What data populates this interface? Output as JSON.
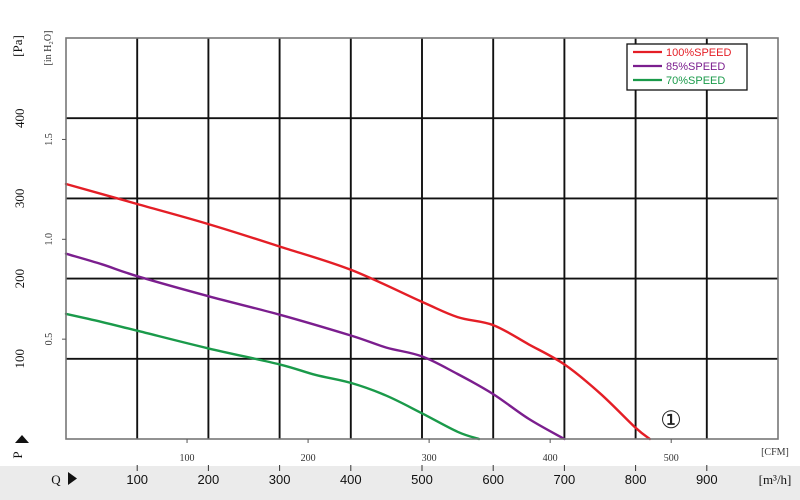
{
  "chart_data": {
    "type": "line",
    "x_unit_primary": "[m³/h]",
    "x_unit_secondary": "[CFM]",
    "y_unit_primary": "[Pa]",
    "y_unit_secondary": "[in H₂O]",
    "x_axis_letter": "Q",
    "y_axis_letter": "P",
    "curve_marker": "①",
    "xlim": [
      0,
      1000
    ],
    "ylim": [
      0,
      500
    ],
    "grid": true,
    "legend_position": "top-right",
    "x_ticks_primary": [
      100,
      200,
      300,
      400,
      500,
      600,
      700,
      800,
      900
    ],
    "x_ticks_secondary": [
      {
        "label": "100",
        "m3h": 170
      },
      {
        "label": "200",
        "m3h": 340
      },
      {
        "label": "300",
        "m3h": 510
      },
      {
        "label": "400",
        "m3h": 680
      },
      {
        "label": "500",
        "m3h": 850
      }
    ],
    "y_ticks_primary": [
      100,
      200,
      300,
      400
    ],
    "y_ticks_secondary": [
      {
        "label": "0.5",
        "pa": 124.5
      },
      {
        "label": "1.0",
        "pa": 249
      },
      {
        "label": "1.5",
        "pa": 373.5
      }
    ],
    "series": [
      {
        "name": "100%SPEED",
        "color": "#e41e26",
        "x": [
          0,
          100,
          200,
          300,
          400,
          500,
          550,
          600,
          650,
          700,
          750,
          800,
          820
        ],
        "y": [
          318,
          293,
          268,
          240,
          211,
          171,
          152,
          142,
          118,
          93,
          57,
          14,
          0
        ]
      },
      {
        "name": "85%SPEED",
        "color": "#7b1e8e",
        "x": [
          0,
          50,
          100,
          200,
          300,
          400,
          450,
          500,
          550,
          600,
          650,
          700
        ],
        "y": [
          231,
          218,
          203,
          178,
          155,
          129,
          114,
          103,
          81,
          56,
          25,
          0
        ]
      },
      {
        "name": "70%SPEED",
        "color": "#1a9a4a",
        "x": [
          0,
          50,
          100,
          200,
          300,
          350,
          400,
          450,
          500,
          550,
          580
        ],
        "y": [
          156,
          146,
          135,
          113,
          93,
          80,
          70,
          54,
          32,
          9,
          0
        ]
      }
    ]
  }
}
